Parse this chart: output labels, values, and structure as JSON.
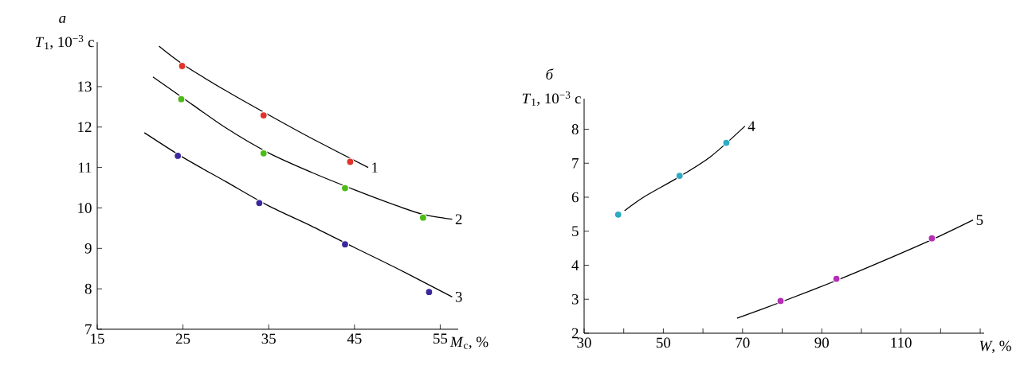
{
  "chart_data": [
    {
      "type": "line",
      "title": "а",
      "xlabel": "*M*$_{c}$, %",
      "ylabel": "*T*$_{1}$, 10$^{−3}$ с",
      "xlim": [
        15,
        57.1
      ],
      "ylim": [
        7,
        14.1
      ],
      "xticks": [
        15,
        25,
        35,
        45,
        55
      ],
      "yticks": [
        7,
        8,
        9,
        10,
        11,
        12,
        13
      ],
      "legend": false,
      "series": [
        {
          "name": "1",
          "color": "#000000",
          "marker": "none",
          "x": [
            22.2,
            25,
            30,
            35,
            40,
            46.6
          ],
          "values": [
            14.0,
            13.55,
            12.9,
            12.3,
            11.72,
            11.0
          ]
        },
        {
          "name": "2",
          "color": "#000000",
          "marker": "none",
          "x": [
            21.5,
            25,
            30,
            35,
            40,
            45,
            50,
            53,
            56.4
          ],
          "values": [
            13.24,
            12.72,
            11.98,
            11.36,
            10.88,
            10.45,
            10.05,
            9.84,
            9.72
          ]
        },
        {
          "name": "3",
          "color": "#000000",
          "marker": "none",
          "x": [
            20.5,
            25,
            30,
            35,
            40,
            45,
            50,
            56.4
          ],
          "values": [
            11.86,
            11.25,
            10.65,
            10.05,
            9.55,
            9.02,
            8.5,
            7.8
          ]
        },
        {
          "type": "scatter",
          "color": "#e0342a",
          "marker": "circle",
          "x": [
            24.9,
            34.4,
            44.5
          ],
          "values": [
            13.51,
            12.29,
            11.14
          ]
        },
        {
          "type": "scatter",
          "color": "#4cbb17",
          "marker": "circle",
          "x": [
            24.8,
            34.4,
            43.9,
            53.0
          ],
          "values": [
            12.69,
            11.35,
            10.49,
            9.76
          ]
        },
        {
          "type": "scatter",
          "color": "#3a2a99",
          "marker": "circle",
          "x": [
            24.4,
            33.9,
            43.9,
            53.7
          ],
          "values": [
            11.29,
            10.12,
            9.1,
            7.92
          ]
        }
      ]
    },
    {
      "type": "line",
      "title": "б",
      "xlabel": "*W*, %",
      "ylabel": "*T*$_{1}$, 10$^{−3}$ с",
      "xlim": [
        30,
        131
      ],
      "ylim": [
        2,
        8.9
      ],
      "xticks": [
        30,
        {
          "value": 40,
          "label": null
        },
        50,
        {
          "value": 60,
          "label": null
        },
        70,
        {
          "value": 80,
          "label": null
        },
        90,
        {
          "value": 100,
          "label": null
        },
        110,
        {
          "value": 120,
          "label": null
        },
        {
          "value": 130,
          "label": null
        }
      ],
      "yticks": [
        2,
        3,
        4,
        5,
        6,
        7,
        8
      ],
      "legend": false,
      "series": [
        {
          "name": "4",
          "color": "#000000",
          "marker": "none",
          "x": [
            40.2,
            45,
            54,
            62,
            70.6
          ],
          "values": [
            5.6,
            6.0,
            6.6,
            7.2,
            8.09
          ]
        },
        {
          "name": "5",
          "color": "#000000",
          "marker": "none",
          "x": [
            68.6,
            80,
            93.7,
            105,
            117.8,
            128.2
          ],
          "values": [
            2.44,
            2.93,
            3.55,
            4.1,
            4.75,
            5.33
          ]
        },
        {
          "type": "scatter",
          "color": "#2eaac4",
          "marker": "circle",
          "x": [
            38.6,
            54.1,
            65.9
          ],
          "values": [
            5.49,
            6.63,
            7.6
          ]
        },
        {
          "type": "scatter",
          "color": "#b52fb5",
          "marker": "circle",
          "x": [
            79.6,
            93.7,
            117.8
          ],
          "values": [
            2.95,
            3.6,
            4.79
          ]
        }
      ]
    }
  ]
}
